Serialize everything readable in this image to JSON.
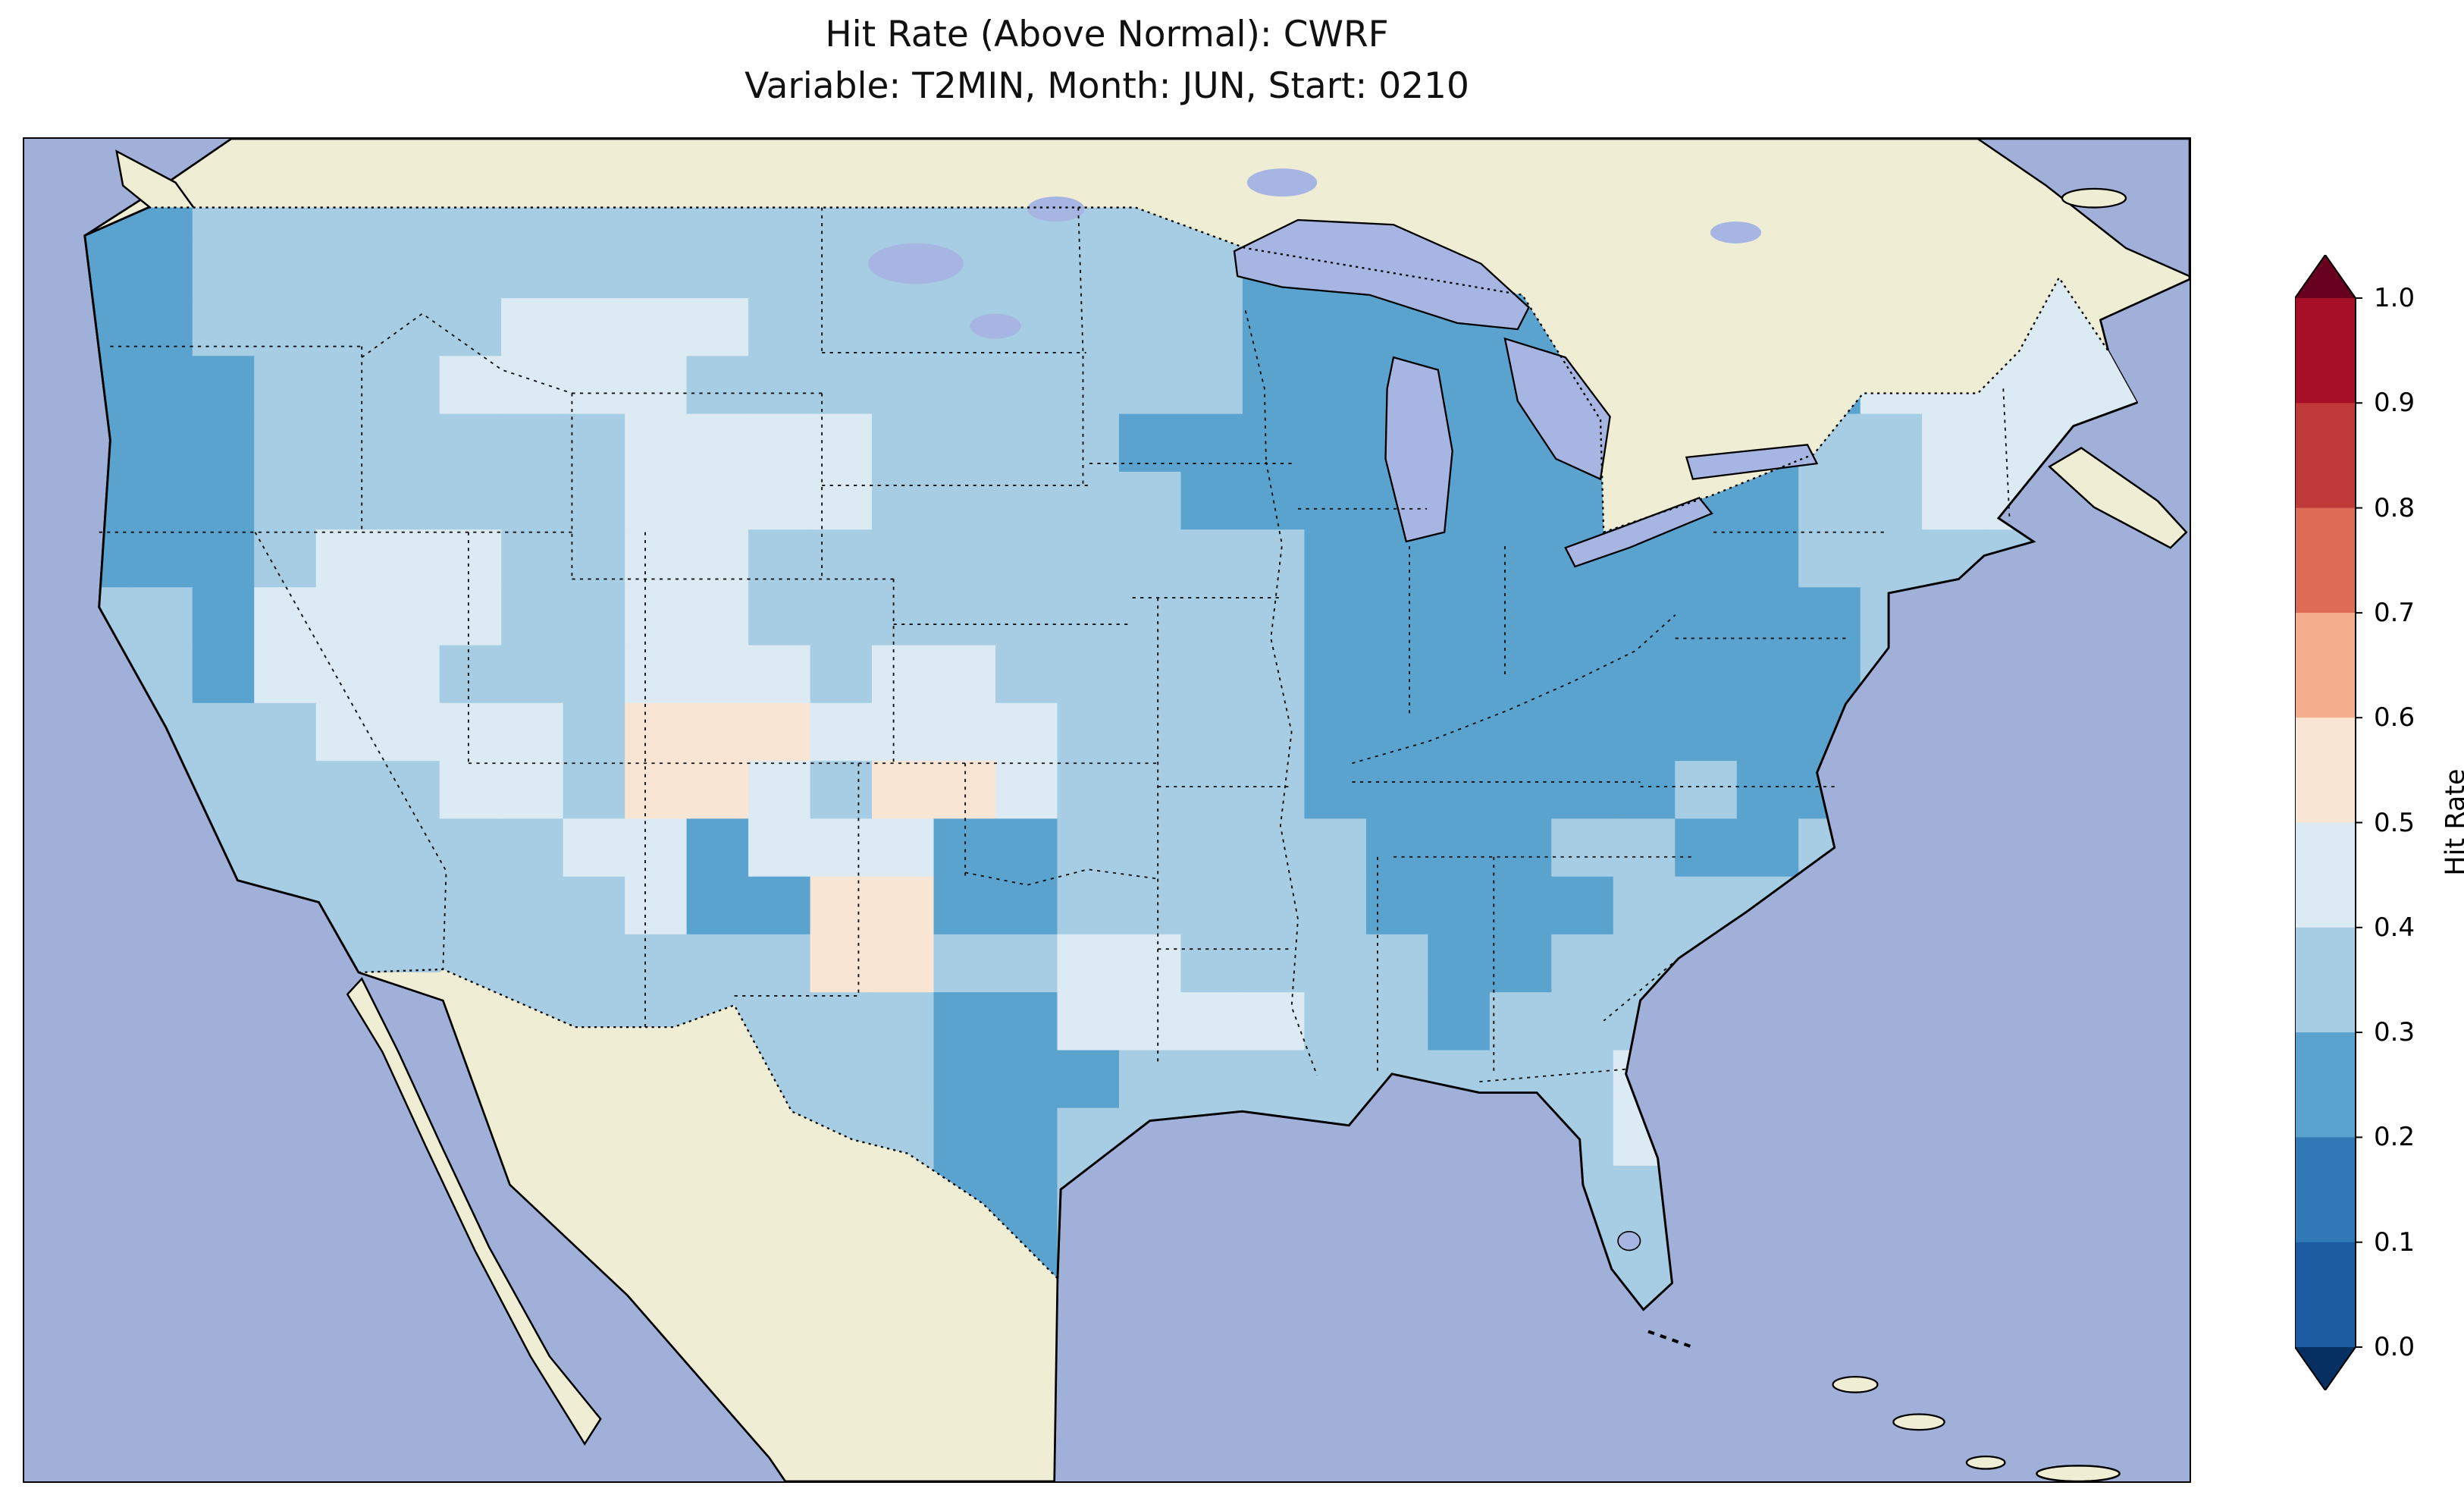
{
  "figure": {
    "title_line1": "Hit Rate (Above Normal): CWRF",
    "title_line2": "Variable: T2MIN, Month: JUN, Start: 0210"
  },
  "colorbar": {
    "label": "Hit Rate",
    "ticks": [
      "1.0",
      "0.9",
      "0.8",
      "0.7",
      "0.6",
      "0.5",
      "0.4",
      "0.3",
      "0.2",
      "0.1",
      "0.0"
    ],
    "over_color": "#67001f",
    "under_color": "#053061",
    "bins": [
      {
        "range": "0.9-1.0",
        "color": "#a50f27"
      },
      {
        "range": "0.8-0.9",
        "color": "#c03a3a"
      },
      {
        "range": "0.7-0.8",
        "color": "#dd6b55"
      },
      {
        "range": "0.6-0.7",
        "color": "#f5ae8d"
      },
      {
        "range": "0.5-0.6",
        "color": "#f9e5d3"
      },
      {
        "range": "0.4-0.5",
        "color": "#dcebf3"
      },
      {
        "range": "0.3-0.4",
        "color": "#a6cde3"
      },
      {
        "range": "0.2-0.3",
        "color": "#5ba3cf"
      },
      {
        "range": "0.1-0.2",
        "color": "#3079b6"
      },
      {
        "range": "0.0-0.1",
        "color": "#1d5ca0"
      }
    ]
  },
  "map": {
    "ocean_color": "#a1b0d8",
    "land_color": "#f0edd5",
    "lake_color": "#a6b5e2"
  },
  "chart_data": {
    "type": "heatmap",
    "title": "Hit Rate (Above Normal): CWRF",
    "subtitle": "Variable: T2MIN, Month: JUN, Start: 0210",
    "model": "CWRF",
    "metric": "Hit Rate (Above Normal)",
    "variable": "T2MIN",
    "month": "JUN",
    "start": "0210",
    "legend_label": "Hit Rate",
    "colorbar_range": [
      0.0,
      1.0
    ],
    "colorbar_step": 0.1,
    "value_bins": {
      "1": {
        "range": [
          0.1,
          0.2
        ],
        "color": "#3079b6"
      },
      "2": {
        "range": [
          0.2,
          0.3
        ],
        "color": "#5ba3cf"
      },
      "3": {
        "range": [
          0.3,
          0.4
        ],
        "color": "#a6cde3"
      },
      "4": {
        "range": [
          0.4,
          0.5
        ],
        "color": "#dcebf3"
      },
      "5": {
        "range": [
          0.5,
          0.6
        ],
        "color": "#f9e5d3"
      }
    },
    "grid": {
      "note": "Coarse approximation of gridded hit-rate bins over the continental US; codes index value_bins.",
      "cols": 34,
      "rows": 20,
      "cell_codes": [
        "2233333333333333333333333333334444",
        "2233333333333333333222223333344444",
        "2233333444433333333222222333444444",
        "2223334444333333333222222222244444",
        "2223333334444333322222222222334444",
        "2223333334444333332222222222334444",
        "2223444334433333333322222222333333",
        "3324444334433333333322222222233333",
        "3324443334443443333322222222233333",
        "3333444435554444333322222222233333",
        "3333334435543554333322222232233333",
        "3333333344244422333332223322333333",
        "3333333334225522333332222333333333",
        "3333333333335533443333223333333333",
        "3333333333333322444433233333333333",
        "3333333333333322233333333444333333",
        "3333333333333322333333333444333333",
        "3333333333333322333333333344333333",
        "3333333333333332333333333344333333",
        "3333333333333333333333333333333333"
      ]
    },
    "summary": "Hit rates over the continental US are mostly 0.2-0.5 (blues). Lowest values (0.2-0.3) occur around the Great Lakes, Ohio Valley, Appalachians, interior Northeast, Alabama-Georgia, coastal Carolinas, the northern California/Oregon coast and south Texas. Highest values (0.5-0.6, pale) appear in New Mexico, Colorado, Oklahoma and central Texas."
  }
}
